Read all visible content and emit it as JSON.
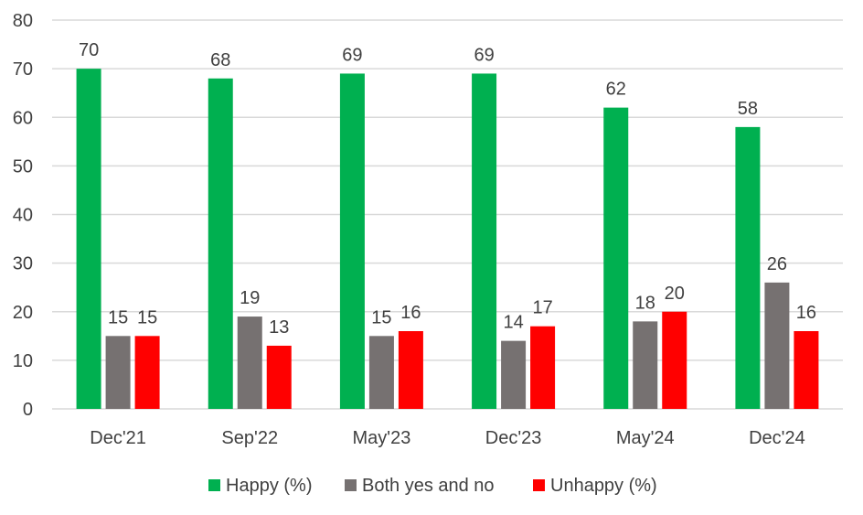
{
  "chart_data": {
    "type": "bar",
    "title": "",
    "xlabel": "",
    "ylabel": "",
    "ylim": [
      0,
      80
    ],
    "yticks": [
      0,
      10,
      20,
      30,
      40,
      50,
      60,
      70,
      80
    ],
    "grid": true,
    "legend_position": "bottom",
    "categories": [
      "Dec'21",
      "Sep'22",
      "May'23",
      "Dec'23",
      "May'24",
      "Dec'24"
    ],
    "series": [
      {
        "name": "Happy (%)",
        "color": "#00B050",
        "values": [
          70,
          68,
          69,
          69,
          62,
          58
        ]
      },
      {
        "name": "Both yes and no",
        "color": "#767171",
        "values": [
          15,
          19,
          15,
          14,
          18,
          26
        ]
      },
      {
        "name": "Unhappy (%)",
        "color": "#FF0000",
        "values": [
          15,
          13,
          16,
          17,
          20,
          16
        ]
      }
    ]
  }
}
